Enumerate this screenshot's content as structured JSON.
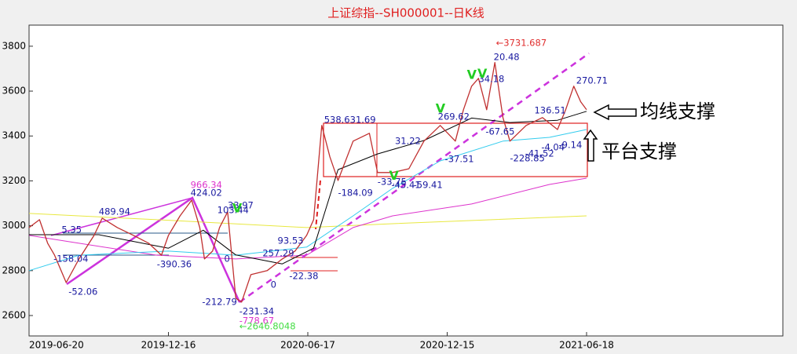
{
  "chart_data": {
    "type": "line",
    "title": "上证综指--SH000001--日K线",
    "xlim": [
      0,
      649
    ],
    "xticks": [
      {
        "value": 0,
        "label": "2019-06-20"
      },
      {
        "value": 120,
        "label": "2019-12-16"
      },
      {
        "value": 240,
        "label": "2020-06-17"
      },
      {
        "value": 360,
        "label": "2020-12-15"
      },
      {
        "value": 480,
        "label": "2021-06-18"
      }
    ],
    "ylim": [
      2509,
      3894
    ],
    "yticks": [
      2600,
      2800,
      3000,
      3200,
      3400,
      3600,
      3800
    ],
    "grid": false,
    "series": [
      {
        "color": "#c03030",
        "width": 1.3,
        "x": [
          0,
          9,
          16,
          22,
          32,
          43,
          56,
          63,
          76,
          90,
          103,
          114,
          120,
          130,
          140,
          147,
          151,
          158,
          164,
          171,
          178,
          183,
          191,
          205,
          218,
          229,
          239,
          245,
          252,
          259,
          266,
          279,
          293,
          300,
          313,
          327,
          340,
          354,
          367,
          374,
          381,
          387,
          394,
          401,
          408,
          414,
          428,
          442,
          455,
          462,
          469,
          475,
          480
        ],
        "values": [
          2992,
          3027,
          2922,
          2869,
          2747,
          2852,
          2957,
          3034,
          2992,
          2957,
          2922,
          2869,
          2957,
          3044,
          3114,
          2992,
          2852,
          2887,
          2992,
          3062,
          2677,
          2660,
          2782,
          2800,
          2852,
          2887,
          2957,
          3027,
          3447,
          3307,
          3202,
          3377,
          3412,
          3237,
          3237,
          3254,
          3377,
          3447,
          3377,
          3517,
          3622,
          3657,
          3517,
          3727,
          3482,
          3377,
          3447,
          3482,
          3429,
          3517,
          3622,
          3552,
          3517
        ]
      },
      {
        "color": "#000000",
        "width": 1,
        "x": [
          0,
          60,
          120,
          150,
          178,
          218,
          245,
          266,
          300,
          340,
          381,
          414,
          455,
          480
        ],
        "values": [
          2960,
          2960,
          2900,
          2980,
          2870,
          2830,
          2900,
          3250,
          3320,
          3380,
          3480,
          3460,
          3470,
          3510
        ]
      },
      {
        "color": "#33ccee",
        "width": 1,
        "x": [
          0,
          43,
          120,
          178,
          239,
          279,
          313,
          354,
          408,
          448,
          480
        ],
        "values": [
          2800,
          2869,
          2887,
          2869,
          2905,
          3044,
          3167,
          3289,
          3377,
          3394,
          3429
        ]
      },
      {
        "color": "#dd33cc",
        "width": 1,
        "x": [
          0,
          43,
          110,
          178,
          239,
          279,
          313,
          381,
          448,
          480
        ],
        "values": [
          2957,
          2922,
          2869,
          2852,
          2869,
          2992,
          3044,
          3097,
          3184,
          3212
        ]
      },
      {
        "color": "#e8e840",
        "width": 1,
        "x": [
          0,
          110,
          239,
          313,
          480
        ],
        "values": [
          3055,
          3027,
          2992,
          3009,
          3044
        ]
      }
    ],
    "annotations": [
      {
        "text": "←3731.687",
        "x": 402,
        "y": 3814,
        "color": "#e03030"
      },
      {
        "text": "20.48",
        "x": 400,
        "y": 3751,
        "color": "#1a1aa0"
      },
      {
        "text": "34.18",
        "x": 387,
        "y": 3653,
        "color": "#1a1aa0"
      },
      {
        "text": "270.71",
        "x": 471,
        "y": 3646,
        "color": "#1a1aa0"
      },
      {
        "text": "538.631.69",
        "x": 254,
        "y": 3471,
        "color": "#1a1aa0"
      },
      {
        "text": "269.62",
        "x": 352,
        "y": 3485,
        "color": "#1a1aa0"
      },
      {
        "text": "136.51",
        "x": 435,
        "y": 3513,
        "color": "#1a1aa0"
      },
      {
        "text": "-67.65",
        "x": 393,
        "y": 3419,
        "color": "#1a1aa0"
      },
      {
        "text": "-37.51",
        "x": 358,
        "y": 3296,
        "color": "#1a1aa0"
      },
      {
        "text": "31.22",
        "x": 315,
        "y": 3377,
        "color": "#1a1aa0"
      },
      {
        "text": "-33.75",
        "x": 300,
        "y": 3195,
        "color": "#1a1aa0"
      },
      {
        "text": "-45.41",
        "x": 312,
        "y": 3181,
        "color": "#1a1aa0"
      },
      {
        "text": "-59.41",
        "x": 331,
        "y": 3181,
        "color": "#1a1aa0"
      },
      {
        "text": "-184.09",
        "x": 266,
        "y": 3146,
        "color": "#1a1aa0"
      },
      {
        "text": "-228.85",
        "x": 414,
        "y": 3300,
        "color": "#1a1aa0"
      },
      {
        "text": "-41.52",
        "x": 427,
        "y": 3321,
        "color": "#1a1aa0"
      },
      {
        "text": "-4.04",
        "x": 441,
        "y": 3349,
        "color": "#1a1aa0"
      },
      {
        "text": "-9.14",
        "x": 456,
        "y": 3359,
        "color": "#1a1aa0"
      },
      {
        "text": "5.35",
        "x": 28,
        "y": 2981,
        "color": "#1a1aa0"
      },
      {
        "text": "-158.04",
        "x": 21,
        "y": 2852,
        "color": "#1a1aa0"
      },
      {
        "text": "-52.06",
        "x": 34,
        "y": 2705,
        "color": "#1a1aa0"
      },
      {
        "text": "489.94",
        "x": 60,
        "y": 3062,
        "color": "#1a1aa0"
      },
      {
        "text": "-390.36",
        "x": 110,
        "y": 2827,
        "color": "#1a1aa0"
      },
      {
        "text": "966.34",
        "x": 139,
        "y": 3181,
        "color": "#dd33cc"
      },
      {
        "text": "424.02",
        "x": 139,
        "y": 3146,
        "color": "#1a1aa0"
      },
      {
        "text": "103.44",
        "x": 162,
        "y": 3069,
        "color": "#1a1aa0"
      },
      {
        "text": "33.97",
        "x": 171,
        "y": 3090,
        "color": "#1a1aa0"
      },
      {
        "text": "0",
        "x": 168,
        "y": 2852,
        "color": "#1a1aa0"
      },
      {
        "text": "-212.79",
        "x": 149,
        "y": 2659,
        "color": "#1a1aa0"
      },
      {
        "text": "-231.34",
        "x": 181,
        "y": 2617,
        "color": "#1a1aa0"
      },
      {
        "text": "-778.67",
        "x": 181,
        "y": 2575,
        "color": "#dd33cc"
      },
      {
        "text": "←2646.8048",
        "x": 181,
        "y": 2551,
        "color": "#44dd44"
      },
      {
        "text": "0",
        "x": 208,
        "y": 2736,
        "color": "#1a1aa0"
      },
      {
        "text": "93.53",
        "x": 214,
        "y": 2932,
        "color": "#1a1aa0"
      },
      {
        "text": "257.29",
        "x": 201,
        "y": 2876,
        "color": "#1a1aa0"
      },
      {
        "text": "-22.38",
        "x": 224,
        "y": 2775,
        "color": "#1a1aa0"
      },
      {
        "text": "V",
        "x": 350,
        "y": 3520,
        "color": "#22cc22"
      },
      {
        "text": "V",
        "x": 377,
        "y": 3670,
        "color": "#22cc22"
      },
      {
        "text": "V",
        "x": 386,
        "y": 3675,
        "color": "#22cc22"
      },
      {
        "text": "V",
        "x": 175,
        "y": 3075,
        "color": "#22cc22"
      },
      {
        "text": "V",
        "x": 310,
        "y": 3220,
        "color": "#22cc22"
      }
    ],
    "callouts": [
      "均线支撑",
      "平台支撑"
    ]
  }
}
